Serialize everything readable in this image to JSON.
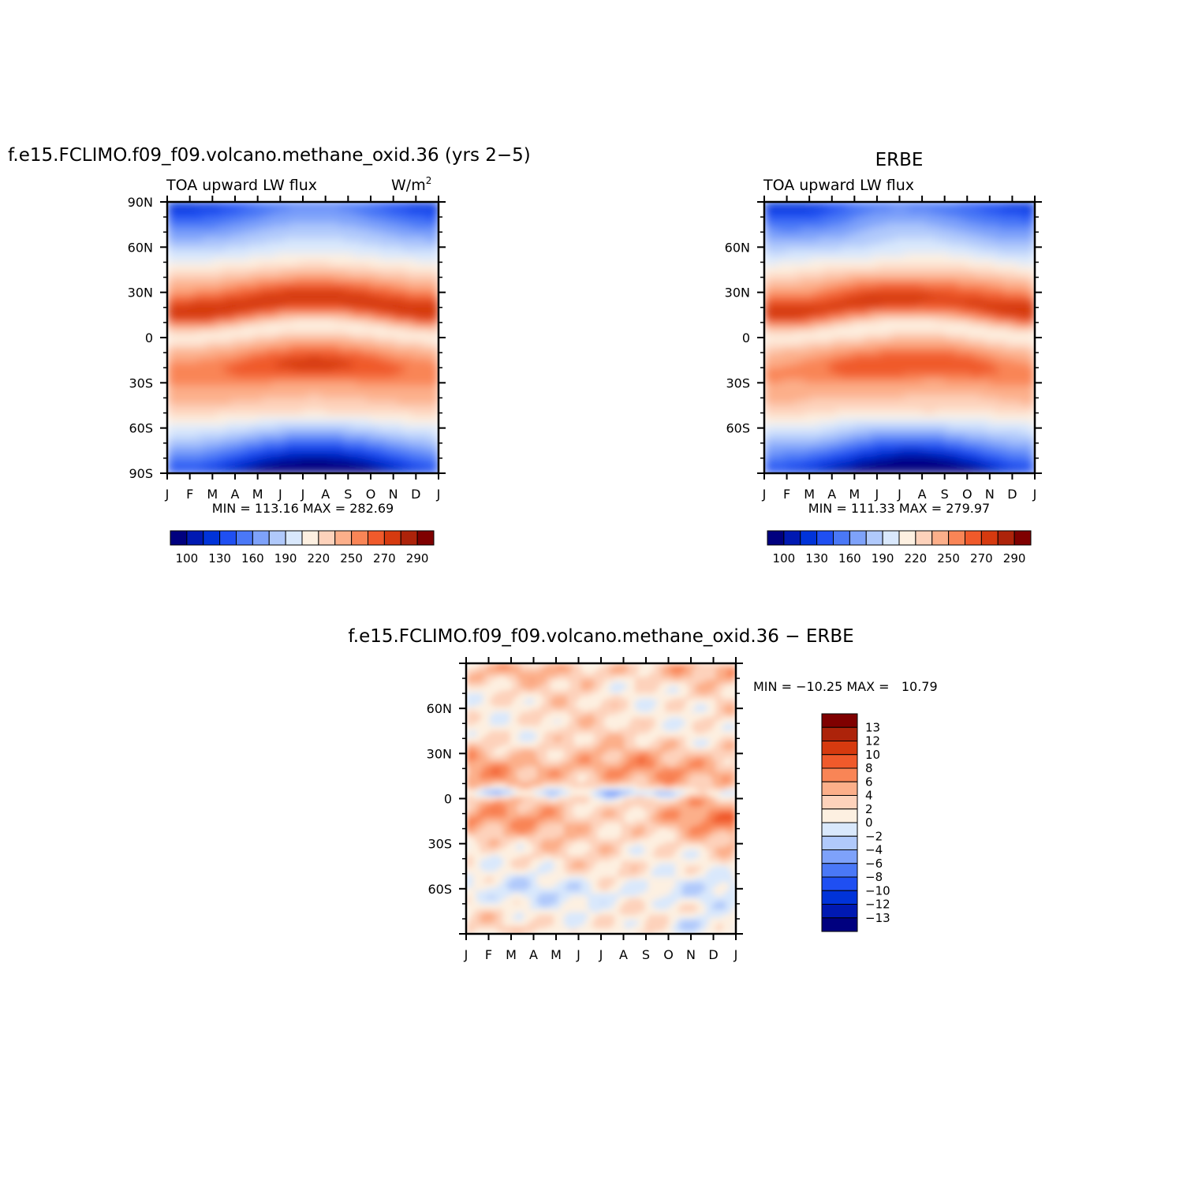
{
  "colors": {
    "abs_palette": [
      "#00007f",
      "#0019b2",
      "#0033d9",
      "#1f4ff2",
      "#4a78f7",
      "#7ea2fa",
      "#b0c9fb",
      "#d9e8fc",
      "#fdf0e1",
      "#fdd2bb",
      "#fcaf8a",
      "#f98556",
      "#f05a2b",
      "#d63a0f",
      "#ad230a",
      "#7f0000"
    ],
    "diff_palette": [
      "#00007f",
      "#0019b2",
      "#0033d9",
      "#1f4ff2",
      "#4a78f7",
      "#7ea2fa",
      "#b0c9fb",
      "#d9e8fc",
      "#fdf0e1",
      "#fdd2bb",
      "#fcaf8a",
      "#f98556",
      "#f05a2b",
      "#d63a0f",
      "#ad230a",
      "#7f0000"
    ]
  },
  "chart_data": [
    {
      "type": "heatmap",
      "title": "f.e15.FCLIMO.f09_f09.volcano.methane_oxid.36 (yrs 2−5)",
      "subtitle_left": "TOA upward LW flux",
      "units": "W/m",
      "units_sup": "2",
      "x_tick_labels": [
        "J",
        "F",
        "M",
        "A",
        "M",
        "J",
        "J",
        "A",
        "S",
        "O",
        "N",
        "D",
        "J"
      ],
      "y_tick_labels": [
        "90N",
        "60N",
        "30N",
        "0",
        "30S",
        "60S",
        "90S"
      ],
      "ylim": [
        -90,
        90
      ],
      "stats": "MIN = 113.16 MAX = 282.69",
      "colorbar_labels": [
        "100",
        "130",
        "160",
        "190",
        "220",
        "250",
        "270",
        "290"
      ]
    },
    {
      "type": "heatmap",
      "title": "ERBE",
      "subtitle_left": "TOA upward LW flux",
      "x_tick_labels": [
        "J",
        "F",
        "M",
        "A",
        "M",
        "J",
        "J",
        "A",
        "S",
        "O",
        "N",
        "D",
        "J"
      ],
      "y_tick_labels": [
        "60N",
        "30N",
        "0",
        "30S",
        "60S"
      ],
      "ylim": [
        -90,
        90
      ],
      "stats": "MIN = 111.33 MAX = 279.97",
      "colorbar_labels": [
        "100",
        "130",
        "160",
        "190",
        "220",
        "250",
        "270",
        "290"
      ]
    },
    {
      "type": "heatmap",
      "title": "f.e15.FCLIMO.f09_f09.volcano.methane_oxid.36 − ERBE",
      "x_tick_labels": [
        "J",
        "F",
        "M",
        "A",
        "M",
        "J",
        "J",
        "A",
        "S",
        "O",
        "N",
        "D",
        "J"
      ],
      "y_tick_labels": [
        "60N",
        "30N",
        "0",
        "30S",
        "60S"
      ],
      "ylim": [
        -90,
        90
      ],
      "stats": "MIN = −10.25 MAX =   10.79",
      "colorbar_labels": [
        "13",
        "12",
        "10",
        "8",
        "6",
        "4",
        "2",
        "0",
        "−2",
        "−4",
        "−6",
        "−8",
        "−10",
        "−12",
        "−13"
      ]
    }
  ]
}
